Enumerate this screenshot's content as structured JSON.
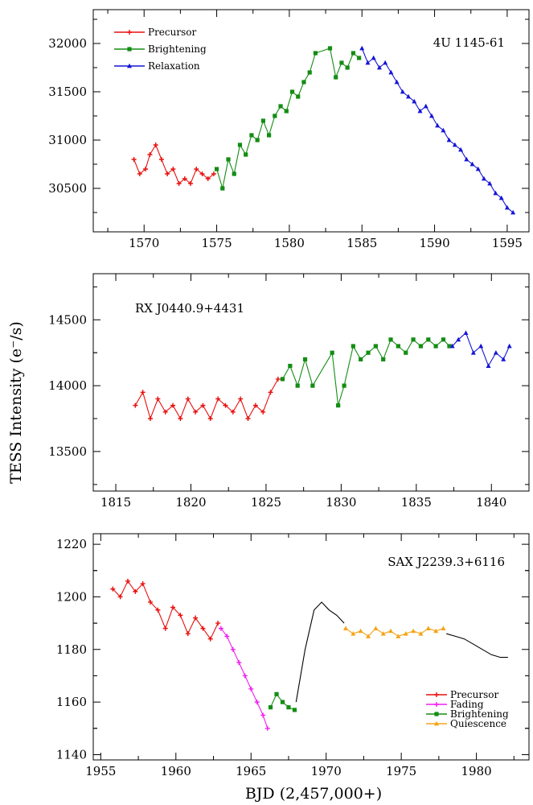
{
  "figure": {
    "ylabel": "TESS Intensity (e⁻/s)",
    "xlabel": "BJD (2,457,000+)"
  },
  "chart_data": [
    {
      "type": "line",
      "title": "4U 1145-61",
      "xlim": [
        1566.5,
        1596.5
      ],
      "ylim": [
        30050,
        32350
      ],
      "xticks": [
        1570,
        1575,
        1580,
        1585,
        1590,
        1595
      ],
      "yticks": [
        30500,
        31000,
        31500,
        32000
      ],
      "legend": "top-left",
      "series": [
        {
          "name": "Precursor",
          "color": "#e8100e",
          "marker": "plus",
          "points": [
            [
              1569.3,
              30800
            ],
            [
              1569.7,
              30650
            ],
            [
              1570.1,
              30700
            ],
            [
              1570.4,
              30850
            ],
            [
              1570.8,
              30950
            ],
            [
              1571.2,
              30800
            ],
            [
              1571.6,
              30650
            ],
            [
              1572.0,
              30700
            ],
            [
              1572.4,
              30550
            ],
            [
              1572.8,
              30600
            ],
            [
              1573.2,
              30550
            ],
            [
              1573.6,
              30700
            ],
            [
              1574.0,
              30650
            ],
            [
              1574.4,
              30600
            ],
            [
              1574.8,
              30650
            ]
          ]
        },
        {
          "name": "Brightening",
          "color": "#138d13",
          "marker": "square",
          "points": [
            [
              1575.0,
              30700
            ],
            [
              1575.4,
              30500
            ],
            [
              1575.8,
              30800
            ],
            [
              1576.2,
              30650
            ],
            [
              1576.6,
              30950
            ],
            [
              1577.0,
              30850
            ],
            [
              1577.4,
              31050
            ],
            [
              1577.8,
              31000
            ],
            [
              1578.2,
              31200
            ],
            [
              1578.6,
              31050
            ],
            [
              1579.0,
              31250
            ],
            [
              1579.4,
              31350
            ],
            [
              1579.8,
              31300
            ],
            [
              1580.2,
              31500
            ],
            [
              1580.6,
              31450
            ],
            [
              1581.0,
              31600
            ],
            [
              1581.4,
              31700
            ],
            [
              1581.8,
              31900
            ],
            [
              1582.8,
              31950
            ],
            [
              1583.2,
              31650
            ],
            [
              1583.6,
              31800
            ],
            [
              1584.0,
              31750
            ],
            [
              1584.4,
              31900
            ],
            [
              1584.8,
              31850
            ]
          ]
        },
        {
          "name": "Relaxation",
          "color": "#1515d6",
          "marker": "triangle",
          "points": [
            [
              1585.0,
              31950
            ],
            [
              1585.4,
              31800
            ],
            [
              1585.8,
              31850
            ],
            [
              1586.2,
              31750
            ],
            [
              1586.6,
              31800
            ],
            [
              1587.0,
              31700
            ],
            [
              1587.4,
              31600
            ],
            [
              1587.8,
              31500
            ],
            [
              1588.2,
              31450
            ],
            [
              1588.6,
              31400
            ],
            [
              1589.0,
              31300
            ],
            [
              1589.4,
              31350
            ],
            [
              1589.8,
              31250
            ],
            [
              1590.2,
              31150
            ],
            [
              1590.6,
              31100
            ],
            [
              1591.0,
              31000
            ],
            [
              1591.4,
              30950
            ],
            [
              1591.8,
              30900
            ],
            [
              1592.2,
              30800
            ],
            [
              1592.6,
              30750
            ],
            [
              1593.0,
              30700
            ],
            [
              1593.4,
              30600
            ],
            [
              1593.8,
              30550
            ],
            [
              1594.2,
              30450
            ],
            [
              1594.6,
              30400
            ],
            [
              1595.0,
              30300
            ],
            [
              1595.4,
              30250
            ]
          ]
        }
      ]
    },
    {
      "type": "line",
      "title": "RX J0440.9+4431",
      "xlim": [
        1813.5,
        1842.5
      ],
      "ylim": [
        13200,
        14850
      ],
      "xticks": [
        1815,
        1820,
        1825,
        1830,
        1835,
        1840
      ],
      "yticks": [
        13500,
        14000,
        14500
      ],
      "series": [
        {
          "color": "#e8100e",
          "marker": "plus",
          "points": [
            [
              1816.3,
              13850
            ],
            [
              1816.8,
              13950
            ],
            [
              1817.3,
              13750
            ],
            [
              1817.8,
              13900
            ],
            [
              1818.3,
              13800
            ],
            [
              1818.8,
              13850
            ],
            [
              1819.3,
              13750
            ],
            [
              1819.8,
              13900
            ],
            [
              1820.3,
              13800
            ],
            [
              1820.8,
              13850
            ],
            [
              1821.3,
              13750
            ],
            [
              1821.8,
              13900
            ],
            [
              1822.3,
              13850
            ],
            [
              1822.8,
              13800
            ],
            [
              1823.3,
              13900
            ],
            [
              1823.8,
              13750
            ],
            [
              1824.3,
              13850
            ],
            [
              1824.8,
              13800
            ],
            [
              1825.3,
              13950
            ],
            [
              1825.8,
              14050
            ]
          ]
        },
        {
          "color": "#138d13",
          "marker": "square",
          "points": [
            [
              1826.1,
              14050
            ],
            [
              1826.6,
              14150
            ],
            [
              1827.1,
              14000
            ],
            [
              1827.6,
              14200
            ],
            [
              1828.1,
              14000
            ],
            [
              1829.4,
              14250
            ],
            [
              1829.8,
              13850
            ],
            [
              1830.2,
              14000
            ],
            [
              1830.8,
              14300
            ],
            [
              1831.3,
              14200
            ],
            [
              1831.8,
              14250
            ],
            [
              1832.3,
              14300
            ],
            [
              1832.8,
              14200
            ],
            [
              1833.3,
              14350
            ],
            [
              1833.8,
              14300
            ],
            [
              1834.3,
              14250
            ],
            [
              1834.8,
              14350
            ],
            [
              1835.3,
              14300
            ],
            [
              1835.8,
              14350
            ],
            [
              1836.3,
              14300
            ],
            [
              1836.8,
              14350
            ],
            [
              1837.2,
              14300
            ]
          ]
        },
        {
          "color": "#1515d6",
          "marker": "triangle",
          "points": [
            [
              1837.4,
              14300
            ],
            [
              1837.8,
              14350
            ],
            [
              1838.3,
              14400
            ],
            [
              1838.8,
              14250
            ],
            [
              1839.3,
              14300
            ],
            [
              1839.8,
              14150
            ],
            [
              1840.3,
              14250
            ],
            [
              1840.8,
              14200
            ],
            [
              1841.2,
              14300
            ]
          ]
        }
      ]
    },
    {
      "type": "line",
      "title": "SAX J2239.3+6116",
      "xlim": [
        1954.5,
        1983.5
      ],
      "ylim": [
        1138,
        1224
      ],
      "xticks": [
        1955,
        1960,
        1965,
        1970,
        1975,
        1980
      ],
      "yticks": [
        1140,
        1160,
        1180,
        1200,
        1220
      ],
      "legend": "bottom-right",
      "series": [
        {
          "name": "Precursor",
          "color": "#e8100e",
          "marker": "plus",
          "points": [
            [
              1955.8,
              1203
            ],
            [
              1956.3,
              1200
            ],
            [
              1956.8,
              1206
            ],
            [
              1957.3,
              1202
            ],
            [
              1957.8,
              1205
            ],
            [
              1958.3,
              1198
            ],
            [
              1958.8,
              1195
            ],
            [
              1959.3,
              1188
            ],
            [
              1959.8,
              1196
            ],
            [
              1960.3,
              1193
            ],
            [
              1960.8,
              1186
            ],
            [
              1961.3,
              1192
            ],
            [
              1961.8,
              1188
            ],
            [
              1962.3,
              1184
            ],
            [
              1962.8,
              1190
            ]
          ]
        },
        {
          "name": "Fading",
          "color": "#f01ef0",
          "marker": "plus",
          "points": [
            [
              1963.0,
              1188
            ],
            [
              1963.4,
              1185
            ],
            [
              1963.8,
              1180
            ],
            [
              1964.2,
              1175
            ],
            [
              1964.6,
              1170
            ],
            [
              1965.0,
              1165
            ],
            [
              1965.4,
              1160
            ],
            [
              1965.8,
              1155
            ],
            [
              1966.1,
              1150
            ]
          ]
        },
        {
          "name": "Brightening",
          "color": "#138d13",
          "marker": "square",
          "points": [
            [
              1966.3,
              1158
            ],
            [
              1966.7,
              1163
            ],
            [
              1967.1,
              1160
            ],
            [
              1967.5,
              1158
            ],
            [
              1967.9,
              1157
            ]
          ]
        },
        {
          "color": "#000000",
          "marker": "none",
          "points": [
            [
              1968.0,
              1160
            ],
            [
              1968.6,
              1180
            ],
            [
              1969.2,
              1195
            ],
            [
              1969.7,
              1198
            ],
            [
              1970.2,
              1195
            ],
            [
              1970.7,
              1193
            ],
            [
              1971.2,
              1190
            ]
          ]
        },
        {
          "name": "Quiescence",
          "color": "#f5a416",
          "marker": "triangle",
          "points": [
            [
              1971.3,
              1188
            ],
            [
              1971.8,
              1186
            ],
            [
              1972.3,
              1187
            ],
            [
              1972.8,
              1185
            ],
            [
              1973.3,
              1188
            ],
            [
              1973.8,
              1186
            ],
            [
              1974.3,
              1187
            ],
            [
              1974.8,
              1185
            ],
            [
              1975.3,
              1186
            ],
            [
              1975.8,
              1187
            ],
            [
              1976.3,
              1186
            ],
            [
              1976.8,
              1188
            ],
            [
              1977.3,
              1187
            ],
            [
              1977.8,
              1188
            ]
          ]
        },
        {
          "color": "#000000",
          "marker": "none",
          "points": [
            [
              1978.0,
              1186
            ],
            [
              1978.6,
              1185
            ],
            [
              1979.2,
              1184
            ],
            [
              1979.8,
              1182
            ],
            [
              1980.4,
              1180
            ],
            [
              1981.0,
              1178
            ],
            [
              1981.6,
              1177
            ],
            [
              1982.1,
              1177
            ]
          ]
        }
      ]
    }
  ]
}
